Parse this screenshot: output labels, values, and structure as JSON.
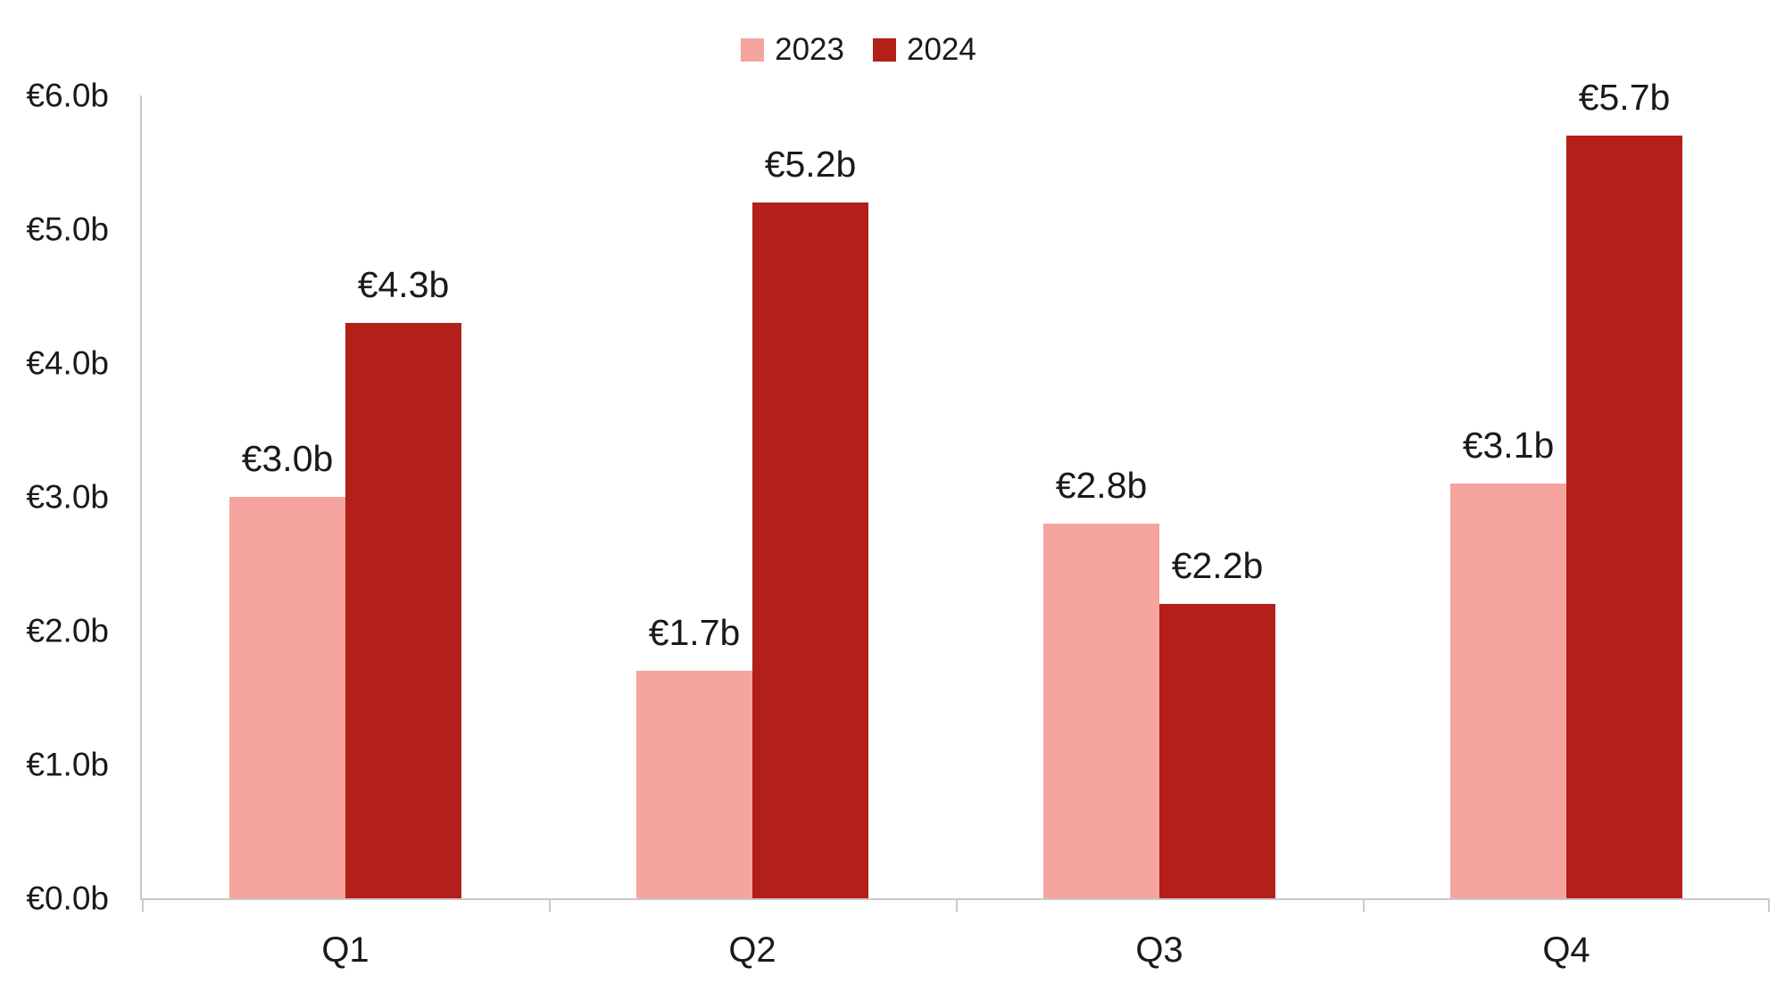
{
  "chart_data": {
    "type": "bar",
    "title": "",
    "xlabel": "",
    "ylabel": "",
    "categories": [
      "Q1",
      "Q2",
      "Q3",
      "Q4"
    ],
    "series": [
      {
        "name": "2023",
        "color": "#f5a49e",
        "values": [
          3.0,
          1.7,
          2.8,
          3.1
        ],
        "labels": [
          "€3.0b",
          "€1.7b",
          "€2.8b",
          "€3.1b"
        ]
      },
      {
        "name": "2024",
        "color": "#b3201a",
        "values": [
          4.3,
          5.2,
          2.2,
          5.7
        ],
        "labels": [
          "€4.3b",
          "€5.2b",
          "€2.2b",
          "€5.7b"
        ]
      }
    ],
    "ylim": [
      0,
      6
    ],
    "ytick_step": 1.0,
    "ytick_labels": [
      "€0.0b",
      "€1.0b",
      "€2.0b",
      "€3.0b",
      "€4.0b",
      "€5.0b",
      "€6.0b"
    ],
    "grid": false,
    "legend_position": "top-center"
  },
  "colors": {
    "background": "#ffffff",
    "axis": "#c9c9c9",
    "text": "#1a1a1a",
    "series_2023": "#f5a49e",
    "series_2024": "#b3201a"
  }
}
